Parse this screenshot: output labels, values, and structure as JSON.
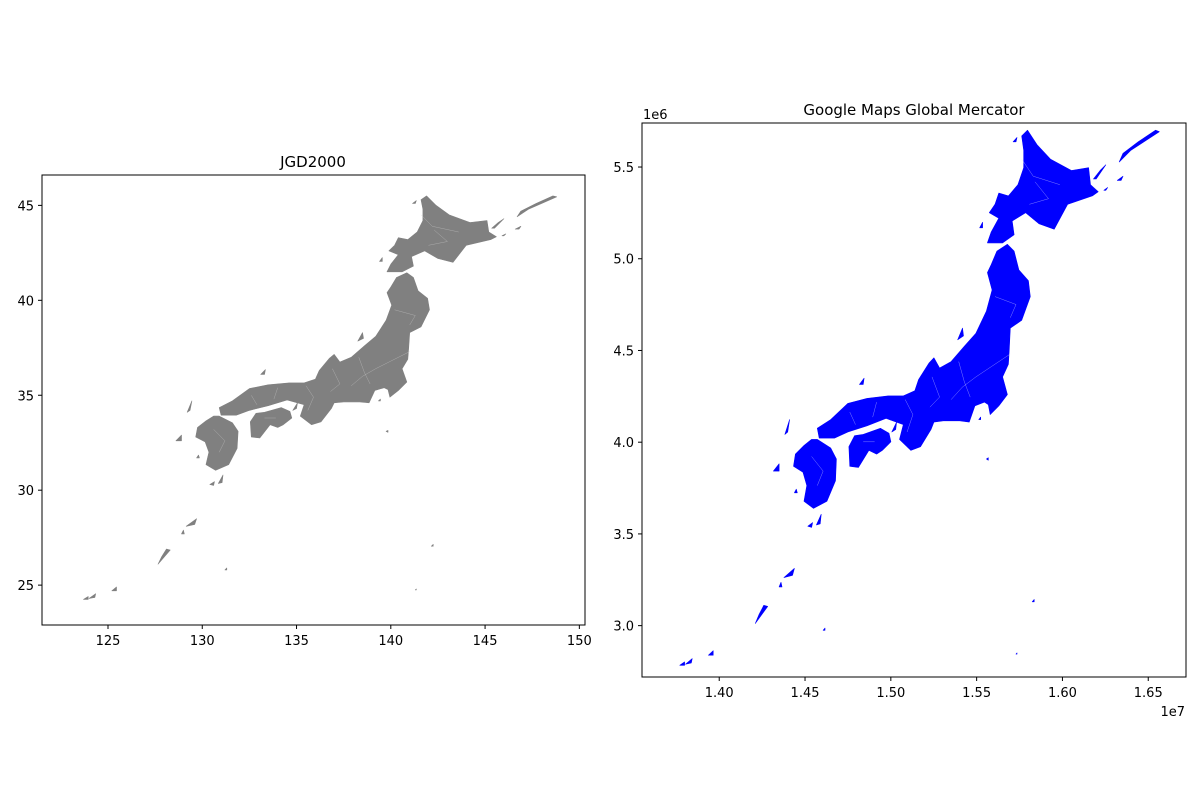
{
  "chart_data": [
    {
      "type": "map",
      "title": "JGD2000",
      "xlabel": "",
      "ylabel": "",
      "xlim": [
        121.5,
        150.3
      ],
      "ylim": [
        22.9,
        46.6
      ],
      "xticks": [
        125,
        130,
        135,
        140,
        145,
        150
      ],
      "yticks": [
        25,
        30,
        35,
        40,
        45
      ],
      "fill_color": "#808080",
      "edge_color": "#cccccc",
      "grid": false,
      "regions": [
        {
          "name": "Hokkaido",
          "lon_range": [
            139.3,
            145.8
          ],
          "lat_range": [
            41.4,
            45.5
          ]
        },
        {
          "name": "Honshu",
          "lon_range": [
            130.9,
            142.1
          ],
          "lat_range": [
            33.4,
            41.6
          ]
        },
        {
          "name": "Shikoku",
          "lon_range": [
            132.0,
            134.8
          ],
          "lat_range": [
            32.7,
            34.4
          ]
        },
        {
          "name": "Kyushu",
          "lon_range": [
            129.6,
            132.1
          ],
          "lat_range": [
            31.0,
            34.0
          ]
        },
        {
          "name": "Ryukyu",
          "lon_range": [
            123.0,
            129.9
          ],
          "lat_range": [
            24.0,
            28.5
          ]
        }
      ]
    },
    {
      "type": "map",
      "title": "Google Maps Global Mercator",
      "xlabel": "",
      "ylabel": "",
      "x_offset_label": "1e7",
      "y_offset_label": "1e6",
      "xlim": [
        1.355,
        1.672
      ],
      "ylim": [
        2.72,
        5.74
      ],
      "xticks": [
        "1.40",
        "1.45",
        "1.50",
        "1.55",
        "1.60",
        "1.65"
      ],
      "yticks": [
        "3.0",
        "3.5",
        "4.0",
        "4.5",
        "5.0",
        "5.5"
      ],
      "fill_color": "#0000ff",
      "edge_color": "#e0e0ff",
      "grid": false
    }
  ]
}
